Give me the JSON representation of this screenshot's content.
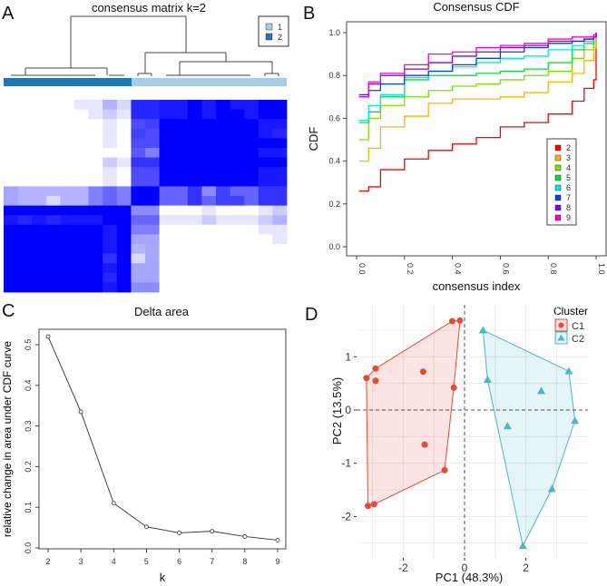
{
  "panel_labels": [
    "A",
    "B",
    "C",
    "D"
  ],
  "chart_data": [
    {
      "type": "heatmap",
      "title": "consensus matrix k=2",
      "legend": {
        "entries": [
          "1",
          "2"
        ],
        "colors": [
          "#a6cee3",
          "#1f78b4"
        ],
        "placement": "top-right"
      },
      "cluster_bar": {
        "left_cluster": "2",
        "right_cluster": "1"
      },
      "color_scale": [
        "#ffffff",
        "#0000ff"
      ],
      "matrix": [
        [
          0,
          0,
          0,
          0,
          0,
          0.1,
          0.1,
          0.3,
          0.15,
          0.85,
          0.85,
          0.9,
          0.9,
          1,
          0.9,
          1,
          0.9,
          0.9,
          1,
          1
        ],
        [
          0,
          0,
          0,
          0,
          0,
          0,
          0.1,
          0.2,
          0.1,
          0.85,
          0.85,
          0.9,
          0.9,
          1,
          0.9,
          1,
          1,
          0.9,
          1,
          1
        ],
        [
          0,
          0,
          0,
          0,
          0,
          0,
          0,
          0.1,
          0,
          0.7,
          0.75,
          1,
          1,
          1,
          1,
          1,
          1,
          1,
          0.9,
          0.9
        ],
        [
          0,
          0,
          0,
          0,
          0,
          0,
          0,
          0.1,
          0,
          0.75,
          0.7,
          1,
          1,
          1,
          1,
          1,
          1,
          1,
          0.9,
          0.85
        ],
        [
          0,
          0,
          0,
          0,
          0,
          0,
          0,
          0.1,
          0,
          0.7,
          0.7,
          1,
          1,
          1,
          1,
          1,
          1,
          1,
          1,
          1
        ],
        [
          0,
          0,
          0,
          0,
          0,
          0,
          0,
          0,
          0,
          0.65,
          0.5,
          1,
          1,
          1,
          1,
          1,
          1,
          1,
          0.9,
          0.9
        ],
        [
          0,
          0,
          0,
          0,
          0,
          0,
          0,
          0.2,
          0.1,
          0.8,
          0.8,
          1,
          1,
          1,
          1,
          1,
          1,
          1,
          1,
          1
        ],
        [
          0,
          0,
          0,
          0,
          0,
          0,
          0,
          0.1,
          0,
          0.7,
          0.7,
          1,
          1,
          1,
          1,
          1,
          1,
          1,
          0.9,
          0.9
        ],
        [
          0,
          0,
          0,
          0,
          0,
          0,
          0,
          0.1,
          0,
          0.7,
          0.7,
          1,
          1,
          1,
          1,
          1,
          1,
          1,
          0.9,
          0.9
        ],
        [
          0.35,
          0.3,
          0.3,
          0.3,
          0.3,
          0.3,
          0.5,
          0.6,
          0.5,
          1,
          1,
          0.6,
          0.6,
          0.8,
          0.45,
          0.75,
          0.6,
          0.6,
          0.8,
          0.8
        ],
        [
          0.35,
          0.3,
          0.3,
          0.15,
          0.3,
          0.3,
          0.5,
          0.6,
          0.5,
          1,
          1,
          0.6,
          0.6,
          0.8,
          0.6,
          0.75,
          0.75,
          0.6,
          0.8,
          0.8
        ],
        [
          1,
          1,
          1,
          1,
          1,
          1,
          1,
          1,
          1,
          0.45,
          0.45,
          0,
          0,
          0,
          0.1,
          0,
          0,
          0,
          0.1,
          0.2
        ],
        [
          0.9,
          0.85,
          0.9,
          0.85,
          0.9,
          0.9,
          0.9,
          1,
          1,
          0.6,
          0.6,
          0.1,
          0.1,
          0.1,
          0.2,
          0.1,
          0.1,
          0.1,
          0.2,
          0.3
        ],
        [
          1,
          1,
          1,
          1,
          1,
          1,
          1,
          0.9,
          1,
          0.5,
          0.5,
          0,
          0,
          0,
          0,
          0,
          0,
          0,
          0.1,
          0.1
        ],
        [
          1,
          1,
          1,
          1,
          1,
          1,
          1,
          0.9,
          1,
          0.35,
          0.35,
          0,
          0,
          0,
          0,
          0,
          0,
          0,
          0,
          0.1
        ],
        [
          1,
          1,
          1,
          1,
          1,
          1,
          1,
          0.9,
          1,
          0.3,
          0.35,
          0,
          0,
          0,
          0,
          0,
          0,
          0,
          0,
          0
        ],
        [
          1,
          1,
          1,
          1,
          1,
          1,
          1,
          0.8,
          1,
          0.15,
          0.35,
          0,
          0,
          0,
          0,
          0,
          0,
          0,
          0,
          0
        ],
        [
          1,
          1,
          1,
          1,
          1,
          1,
          1,
          0.9,
          1,
          0.35,
          0.35,
          0,
          0,
          0,
          0,
          0,
          0,
          0,
          0,
          0
        ],
        [
          1,
          1,
          1,
          1,
          1,
          1,
          1,
          0.85,
          1,
          0.35,
          0.35,
          0,
          0,
          0,
          0,
          0,
          0,
          0,
          0,
          0
        ],
        [
          1,
          1,
          1,
          1,
          1,
          1,
          1,
          0.9,
          1,
          0.45,
          0.45,
          0,
          0,
          0,
          0,
          0,
          0,
          0,
          0,
          0
        ]
      ]
    },
    {
      "type": "line",
      "title": "Consensus CDF",
      "xlabel": "consensus index",
      "ylabel": "CDF",
      "xlim": [
        0,
        1
      ],
      "ylim": [
        0,
        1
      ],
      "xticks": [
        "0.0",
        "0.2",
        "0.4",
        "0.6",
        "0.8",
        "1.0"
      ],
      "yticks": [
        "0.0",
        "0.2",
        "0.4",
        "0.6",
        "0.8",
        "1.0"
      ],
      "legend_placement": "bottom-right",
      "x": [
        0.01,
        0.05,
        0.1,
        0.2,
        0.3,
        0.4,
        0.5,
        0.6,
        0.7,
        0.8,
        0.9,
        0.95,
        0.99,
        1.0
      ],
      "series": [
        {
          "name": "2",
          "color": "#ff0000",
          "values": [
            0.26,
            0.28,
            0.36,
            0.41,
            0.45,
            0.48,
            0.51,
            0.56,
            0.58,
            0.62,
            0.68,
            0.74,
            0.78,
            1.0
          ]
        },
        {
          "name": "3",
          "color": "#ffb400",
          "values": [
            0.4,
            0.46,
            0.56,
            0.61,
            0.67,
            0.69,
            0.69,
            0.7,
            0.72,
            0.77,
            0.81,
            0.87,
            0.93,
            1.0
          ]
        },
        {
          "name": "4",
          "color": "#80e000",
          "values": [
            0.5,
            0.6,
            0.66,
            0.7,
            0.73,
            0.75,
            0.76,
            0.78,
            0.8,
            0.82,
            0.88,
            0.92,
            0.96,
            1.0
          ]
        },
        {
          "name": "5",
          "color": "#00e040",
          "values": [
            0.58,
            0.63,
            0.7,
            0.78,
            0.8,
            0.8,
            0.81,
            0.82,
            0.83,
            0.86,
            0.92,
            0.95,
            0.98,
            1.0
          ]
        },
        {
          "name": "6",
          "color": "#00e8e8",
          "values": [
            0.59,
            0.66,
            0.71,
            0.79,
            0.82,
            0.84,
            0.86,
            0.88,
            0.89,
            0.92,
            0.94,
            0.96,
            0.98,
            1.0
          ]
        },
        {
          "name": "7",
          "color": "#0040ff",
          "values": [
            0.71,
            0.73,
            0.76,
            0.8,
            0.82,
            0.85,
            0.88,
            0.91,
            0.93,
            0.95,
            0.96,
            0.97,
            0.98,
            1.0
          ]
        },
        {
          "name": "8",
          "color": "#8000ff",
          "values": [
            0.7,
            0.76,
            0.8,
            0.83,
            0.86,
            0.89,
            0.91,
            0.93,
            0.94,
            0.96,
            0.96,
            0.97,
            0.98,
            1.0
          ]
        },
        {
          "name": "9",
          "color": "#ff00c0",
          "values": [
            0.7,
            0.77,
            0.81,
            0.85,
            0.9,
            0.91,
            0.93,
            0.94,
            0.95,
            0.97,
            0.98,
            0.98,
            0.99,
            1.0
          ]
        }
      ]
    },
    {
      "type": "line",
      "title": "Delta area",
      "xlabel": "k",
      "ylabel": "relative change in area under CDF curve",
      "ylim": [
        0,
        0.5
      ],
      "categories": [
        "2",
        "3",
        "4",
        "5",
        "6",
        "7",
        "8",
        "9"
      ],
      "yticks": [
        "0.0",
        "0.1",
        "0.2",
        "0.3",
        "0.4",
        "0.5"
      ],
      "values": [
        0.52,
        0.335,
        0.11,
        0.052,
        0.037,
        0.041,
        0.028,
        0.019
      ]
    },
    {
      "type": "scatter",
      "xlabel": "PC1 (48.3%)",
      "ylabel": "PC2 (13.5%)",
      "xticks": [
        "-2",
        "0",
        "2"
      ],
      "yticks": [
        "1",
        "0",
        "-1",
        "-2"
      ],
      "legend_title": "Cluster",
      "legend_placement": "top-right",
      "grid": true,
      "series": [
        {
          "name": "C1",
          "color": "#e64b35",
          "marker": "circle",
          "points": [
            [
              -3.2,
              0.6
            ],
            [
              -2.9,
              0.78
            ],
            [
              -2.9,
              0.55
            ],
            [
              -1.35,
              0.72
            ],
            [
              -0.4,
              1.67
            ],
            [
              -0.15,
              1.68
            ],
            [
              -0.35,
              0.42
            ],
            [
              -1.3,
              -0.65
            ],
            [
              -0.65,
              -1.13
            ],
            [
              -3.15,
              -1.8
            ],
            [
              -2.95,
              -1.77
            ]
          ]
        },
        {
          "name": "C2",
          "color": "#4db6c9",
          "marker": "triangle",
          "points": [
            [
              0.6,
              1.5
            ],
            [
              0.75,
              0.57
            ],
            [
              2.5,
              0.36
            ],
            [
              3.4,
              0.73
            ],
            [
              3.6,
              -0.2
            ],
            [
              1.4,
              -0.3
            ],
            [
              2.85,
              -1.48
            ],
            [
              1.9,
              -2.55
            ]
          ]
        }
      ]
    }
  ]
}
